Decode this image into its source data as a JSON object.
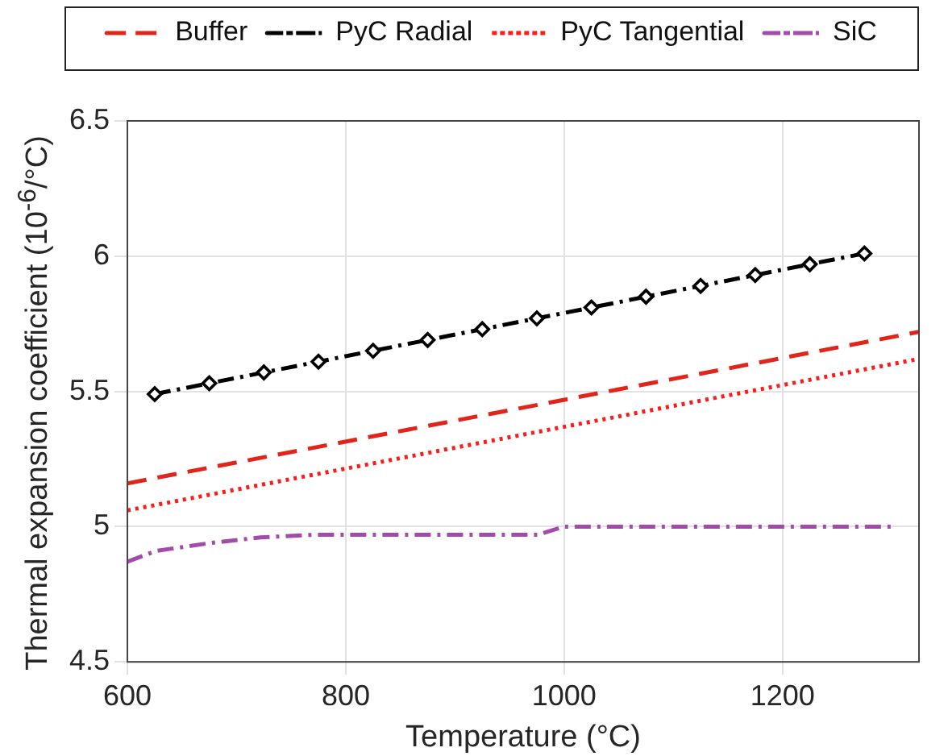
{
  "chart_data": {
    "type": "line",
    "xlabel": "Temperature (°C)",
    "ylabel": "Thermal expansion coefficient (10$^{-6}$/°C)",
    "xlim": [
      600,
      1325
    ],
    "xticks": [
      600,
      800,
      1000,
      1200
    ],
    "ylim": [
      4.5,
      6.5
    ],
    "yticks": [
      4.5,
      5,
      5.5,
      6,
      6.5
    ],
    "grid": true,
    "legend": "top",
    "series": [
      {
        "name": "Buffer",
        "color": "#e1251b",
        "line_style": "dashed",
        "marker": "none",
        "x": [
          600,
          1325
        ],
        "values": [
          5.16,
          5.72
        ]
      },
      {
        "name": "PyC Radial",
        "color": "#000000",
        "line_style": "dashdot",
        "marker": "diamond",
        "x": [
          625,
          675,
          725,
          775,
          825,
          875,
          925,
          975,
          1025,
          1075,
          1125,
          1175,
          1225,
          1275
        ],
        "values": [
          5.49,
          5.53,
          5.57,
          5.61,
          5.65,
          5.69,
          5.73,
          5.77,
          5.81,
          5.85,
          5.89,
          5.93,
          5.97,
          6.01
        ]
      },
      {
        "name": "PyC Tangential",
        "color": "#ff1a1a",
        "line_style": "dotted",
        "marker": "none",
        "x": [
          600,
          1325
        ],
        "values": [
          5.06,
          5.62
        ]
      },
      {
        "name": "SiC",
        "color": "#a24bab",
        "line_style": "dashdot",
        "marker": "none",
        "x": [
          600,
          626,
          677,
          722,
          771,
          850,
          976,
          1000,
          1300
        ],
        "values": [
          4.87,
          4.91,
          4.94,
          4.96,
          4.97,
          4.97,
          4.97,
          5.0,
          5.0
        ]
      }
    ]
  }
}
